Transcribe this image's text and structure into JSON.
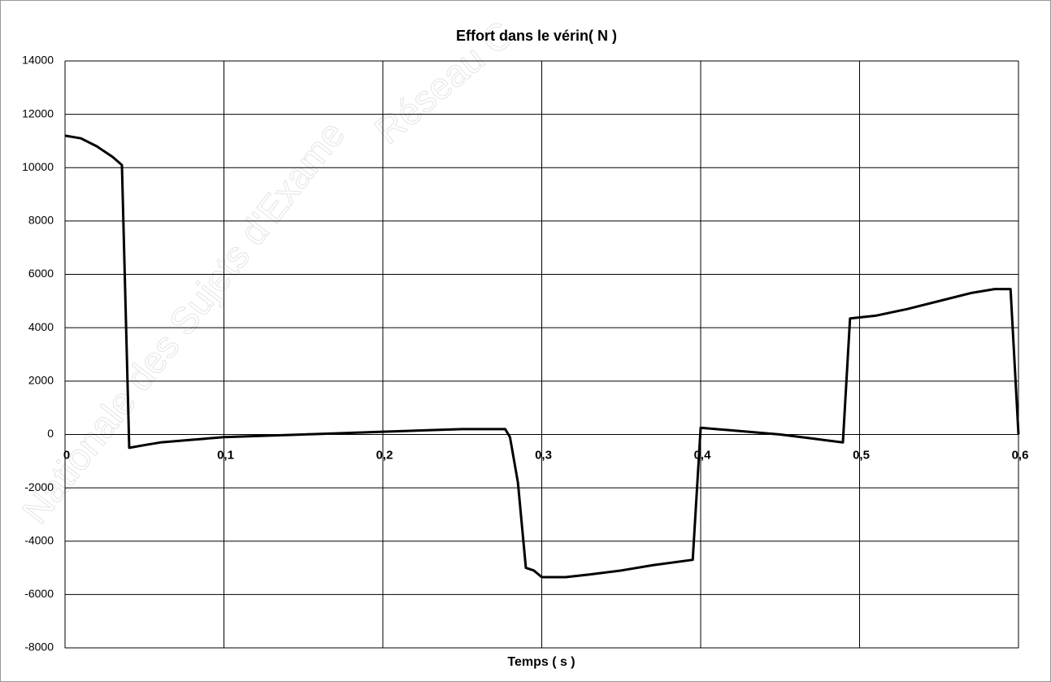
{
  "chart_data": {
    "type": "line",
    "title": "Effort dans le vérin( N )",
    "x_label": "Temps ( s )",
    "watermark": [
      "Nationale des Sujets d'Exame",
      "Réseau C"
    ],
    "x": [
      0,
      0.01,
      0.02,
      0.03,
      0.0358,
      0.0404,
      0.05,
      0.06,
      0.08,
      0.1,
      0.15,
      0.2,
      0.25,
      0.277,
      0.28,
      0.285,
      0.29,
      0.295,
      0.3,
      0.315,
      0.33,
      0.35,
      0.37,
      0.395,
      0.4,
      0.42,
      0.45,
      0.47,
      0.4895,
      0.494,
      0.51,
      0.53,
      0.55,
      0.57,
      0.585,
      0.595,
      0.6
    ],
    "values": [
      11200,
      11100,
      10800,
      10400,
      10100,
      -500,
      -400,
      -300,
      -200,
      -100,
      0,
      100,
      200,
      200,
      -100,
      -1800,
      -5000,
      -5100,
      -5350,
      -5350,
      -5250,
      -5100,
      -4900,
      -4700,
      250,
      150,
      0,
      -150,
      -300,
      4350,
      4450,
      4700,
      5000,
      5300,
      5450,
      5450,
      0
    ],
    "color": "#000000",
    "xlim": [
      0,
      0.6
    ],
    "xticks": [
      0,
      {
        "value": 0.1,
        "label": "0,1"
      },
      {
        "value": 0.2,
        "label": "0,2"
      },
      {
        "value": 0.3,
        "label": "0,3"
      },
      {
        "value": 0.4,
        "label": "0,4"
      },
      {
        "value": 0.5,
        "label": "0,5"
      },
      {
        "value": 0.6,
        "label": "0,6"
      }
    ],
    "ylim": [
      -8000,
      14000
    ],
    "yticks": [
      -8000,
      -6000,
      -4000,
      -2000,
      0,
      2000,
      4000,
      6000,
      8000,
      10000,
      12000,
      14000
    ],
    "grid": true
  }
}
